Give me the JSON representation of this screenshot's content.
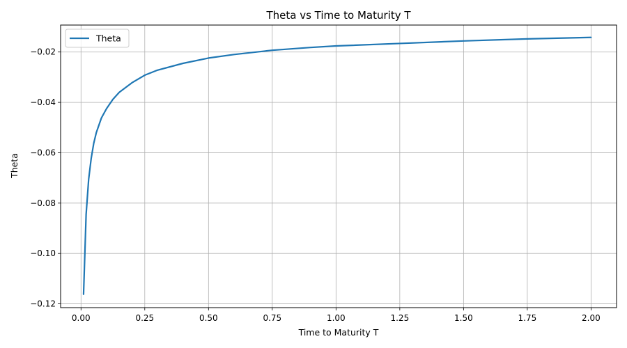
{
  "chart_data": {
    "type": "line",
    "title": "Theta vs Time to Maturity T",
    "xlabel": "Time to Maturity T",
    "ylabel": "Theta",
    "xlim": [
      -0.08,
      2.1
    ],
    "ylim": [
      -0.1215,
      -0.0093
    ],
    "x_ticks": [
      0.0,
      0.25,
      0.5,
      0.75,
      1.0,
      1.25,
      1.5,
      1.75,
      2.0
    ],
    "x_tick_labels": [
      "0.00",
      "0.25",
      "0.50",
      "0.75",
      "1.00",
      "1.25",
      "1.50",
      "1.75",
      "2.00"
    ],
    "y_ticks": [
      -0.12,
      -0.1,
      -0.08,
      -0.06,
      -0.04,
      -0.02
    ],
    "y_tick_labels": [
      "−0.12",
      "−0.10",
      "−0.08",
      "−0.06",
      "−0.04",
      "−0.02"
    ],
    "grid": true,
    "legend": {
      "position": "upper-left",
      "entries": [
        "Theta"
      ]
    },
    "series": [
      {
        "name": "Theta",
        "color": "#1f77b4",
        "x": [
          0.01,
          0.02,
          0.03,
          0.04,
          0.05,
          0.06,
          0.08,
          0.1,
          0.125,
          0.15,
          0.2,
          0.25,
          0.3,
          0.4,
          0.5,
          0.6,
          0.75,
          0.9,
          1.0,
          1.25,
          1.5,
          1.75,
          2.0
        ],
        "y": [
          -0.1162,
          -0.0845,
          -0.0705,
          -0.0622,
          -0.0562,
          -0.052,
          -0.0462,
          -0.0425,
          -0.0388,
          -0.036,
          -0.0322,
          -0.0292,
          -0.0272,
          -0.0245,
          -0.0224,
          -0.021,
          -0.0193,
          -0.0182,
          -0.0176,
          -0.0166,
          -0.0156,
          -0.0148,
          -0.0142
        ]
      }
    ]
  }
}
